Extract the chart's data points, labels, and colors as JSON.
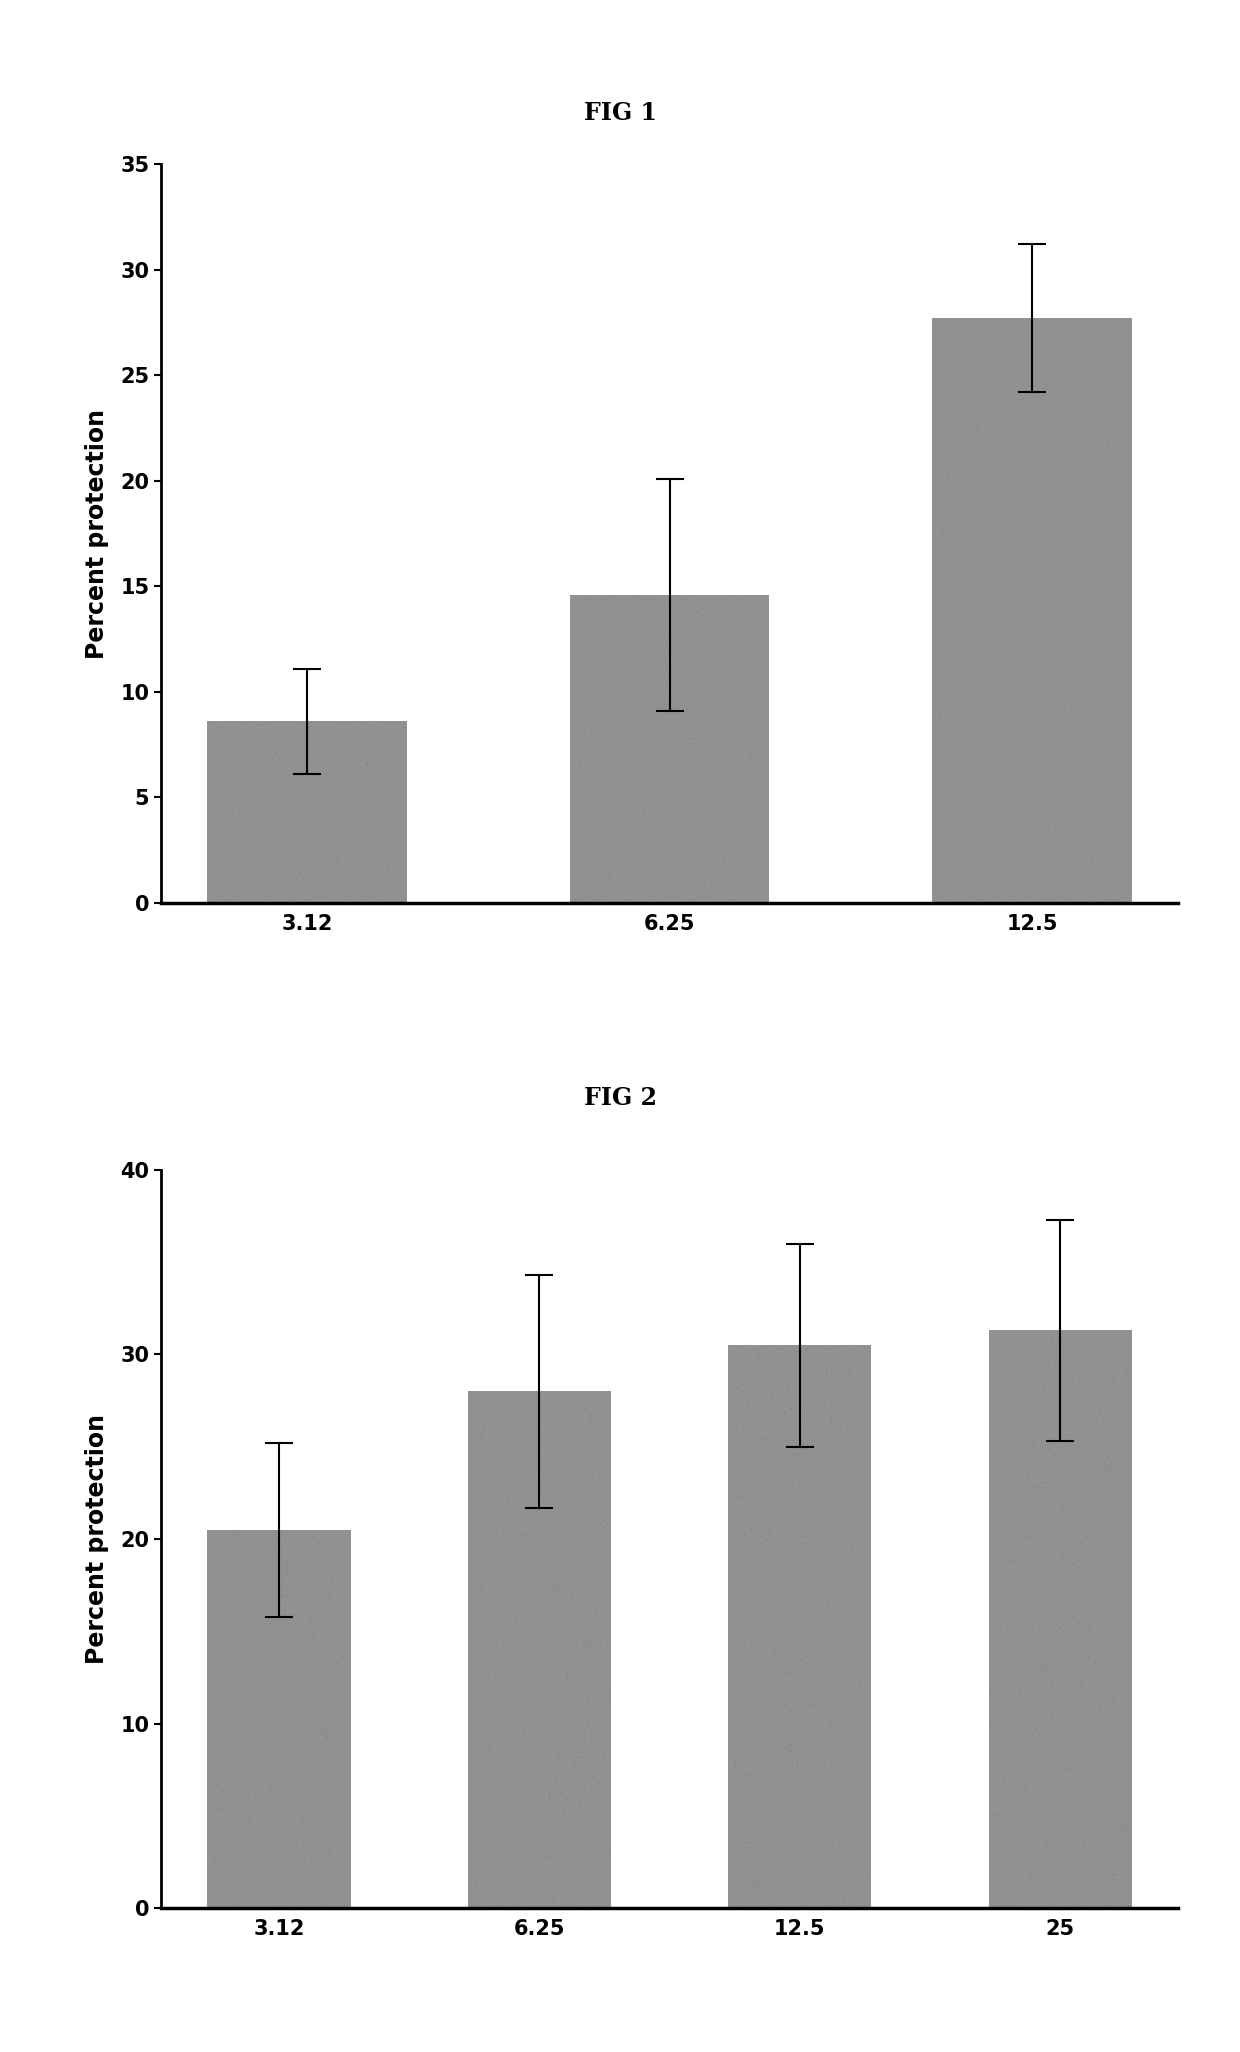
{
  "fig1": {
    "title": "FIG 1",
    "categories": [
      "3.12",
      "6.25",
      "12.5"
    ],
    "values": [
      8.6,
      14.6,
      27.7
    ],
    "errors": [
      2.5,
      5.5,
      3.5
    ],
    "ylabel": "Percent protection",
    "ylim": [
      0,
      35
    ],
    "yticks": [
      0,
      5,
      10,
      15,
      20,
      25,
      30,
      35
    ],
    "bar_color": "#919191",
    "bar_width": 0.55
  },
  "fig2": {
    "title": "FIG 2",
    "categories": [
      "3.12",
      "6.25",
      "12.5",
      "25"
    ],
    "values": [
      20.5,
      28.0,
      30.5,
      31.3
    ],
    "errors": [
      4.7,
      6.3,
      5.5,
      6.0
    ],
    "ylabel": "Percent protection",
    "ylim": [
      0,
      40
    ],
    "yticks": [
      0,
      10,
      20,
      30,
      40
    ],
    "bar_color": "#919191",
    "bar_width": 0.55
  },
  "background_color": "#ffffff",
  "title_fontsize": 17,
  "label_fontsize": 17,
  "tick_fontsize": 15
}
